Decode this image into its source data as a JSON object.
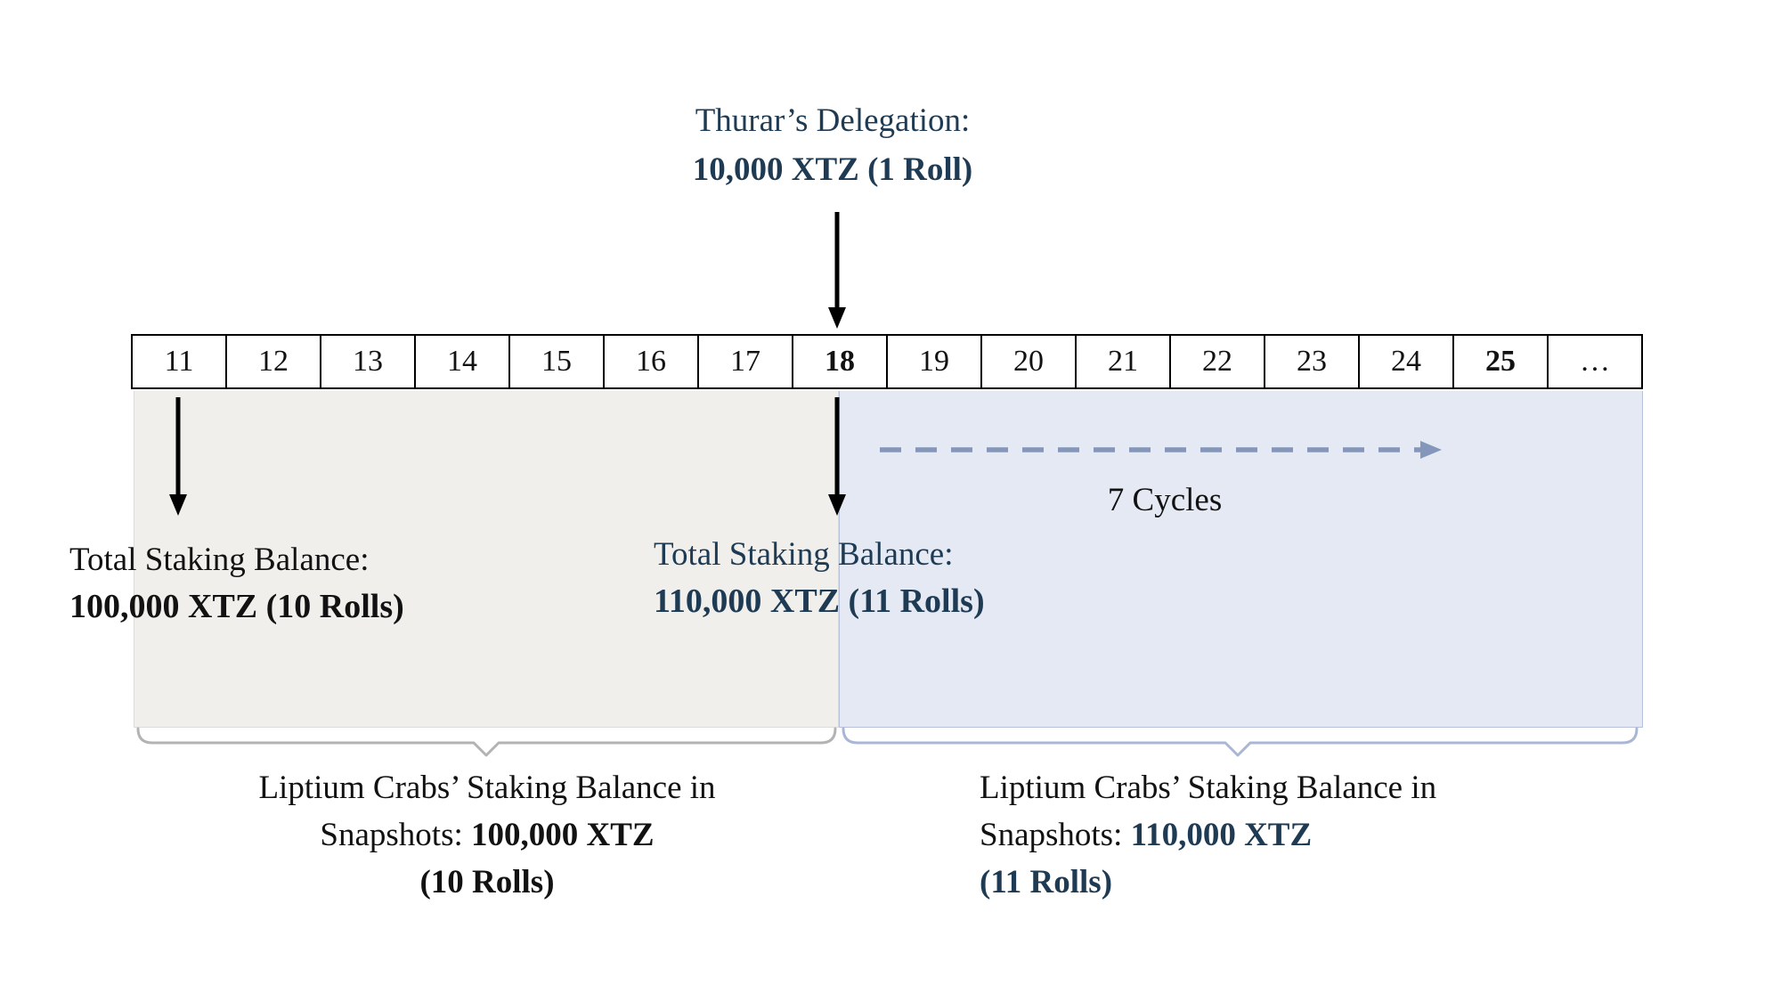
{
  "colors": {
    "navy": "#1f3b54",
    "ink": "#121212",
    "region-gray": "#f0efec",
    "region-gray-border": "#dcdcda",
    "region-blue": "#e4e9f3",
    "region-blue-border": "#b7c2da",
    "dashed-arrow": "#8496ba",
    "bracket-left": "#b3b3b3",
    "bracket-right": "#a9b7d5",
    "arrow-black": "#000000",
    "cell-border": "#000000"
  },
  "delegation": {
    "line1": "Thurar’s Delegation:",
    "line2": "10,000 XTZ (1 Roll)"
  },
  "timeline": {
    "cells": [
      "11",
      "12",
      "13",
      "14",
      "15",
      "16",
      "17",
      "18",
      "19",
      "20",
      "21",
      "22",
      "23",
      "24",
      "25",
      "…"
    ],
    "bold_cells": [
      "18",
      "25"
    ]
  },
  "balance_before": {
    "line1": "Total Staking Balance:",
    "line2": "100,000 XTZ (10 Rolls)"
  },
  "balance_after": {
    "line1": "Total Staking Balance:",
    "line2": "110,000 XTZ (11 Rolls)"
  },
  "cycles_label": "7 Cycles",
  "left_caption": {
    "line1": "Liptium Crabs’ Staking Balance in",
    "line2_prefix": "Snapshots: ",
    "line2_value": "100,000 XTZ",
    "line3": "(10 Rolls)"
  },
  "right_caption": {
    "line1": "Liptium Crabs’ Staking Balance in",
    "line2_prefix": "Snapshots: ",
    "line2_value": "110,000 XTZ",
    "line3": "(11 Rolls)"
  }
}
